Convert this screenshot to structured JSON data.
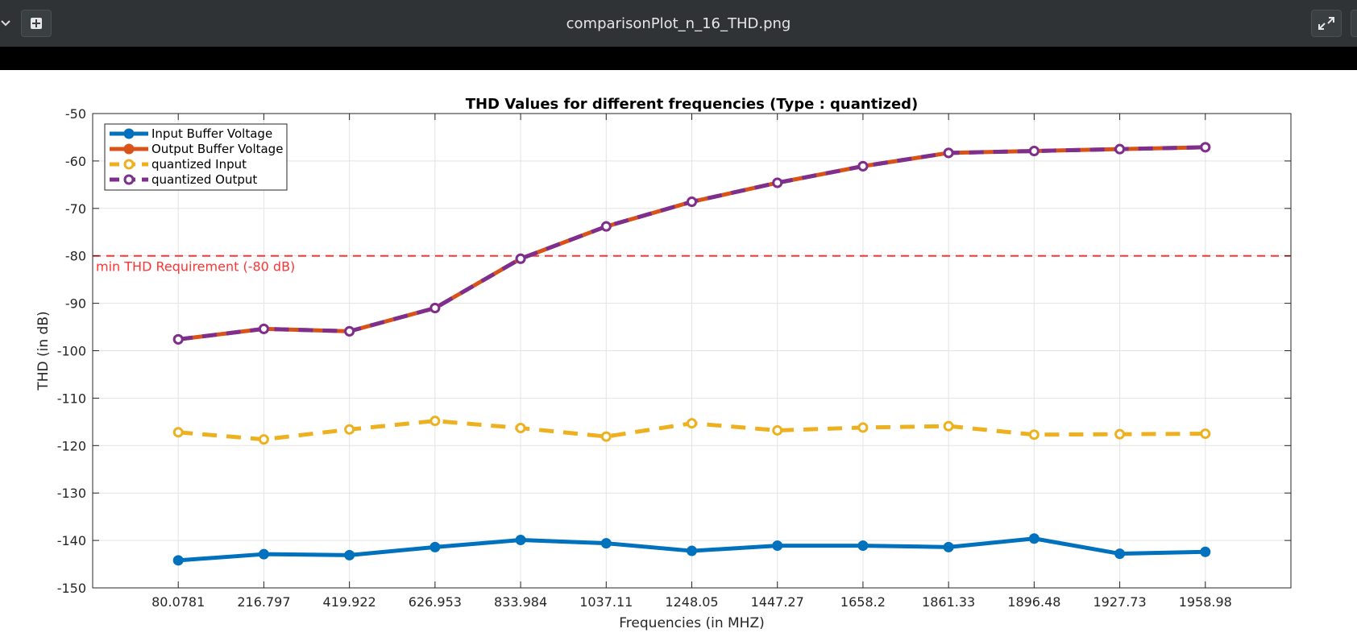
{
  "window": {
    "title": "comparisonPlot_n_16_THD.png"
  },
  "colors": {
    "titlebar": "#2f3335",
    "input_buffer": "#0072bd",
    "output_buffer": "#d95319",
    "quantized_input": "#edb120",
    "quantized_output": "#7e2f8e",
    "requirement": "#ff3333"
  },
  "icons": {
    "left": "chevron-down-icon",
    "add": "add-icon",
    "right": "fullscreen-icon"
  },
  "chart_data": {
    "type": "line",
    "title": "THD Values for different frequencies (Type : quantized)",
    "xlabel": "Frequencies (in MHZ)",
    "ylabel": "THD (in dB)",
    "categories": [
      "80.0781",
      "216.797",
      "419.922",
      "626.953",
      "833.984",
      "1037.11",
      "1248.05",
      "1447.27",
      "1658.2",
      "1861.33",
      "1896.48",
      "1927.73",
      "1958.98"
    ],
    "ylim": [
      -150,
      -50
    ],
    "yticks": [
      -50,
      -60,
      -70,
      -80,
      -90,
      -100,
      -110,
      -120,
      -130,
      -140,
      -150
    ],
    "grid": true,
    "legend_position": "top-left",
    "series": [
      {
        "name": "Input Buffer Voltage",
        "style": "solid",
        "values": [
          -144.2,
          -142.9,
          -143.1,
          -141.4,
          -139.9,
          -140.6,
          -142.2,
          -141.1,
          -141.1,
          -141.4,
          -139.6,
          -142.8,
          -142.4
        ]
      },
      {
        "name": "Output Buffer Voltage",
        "style": "solid",
        "values": [
          -97.6,
          -95.4,
          -95.9,
          -91.0,
          -80.6,
          -73.8,
          -68.6,
          -64.6,
          -61.1,
          -58.3,
          -57.9,
          -57.5,
          -57.1
        ]
      },
      {
        "name": "quantized Input",
        "style": "dashed",
        "values": [
          -117.2,
          -118.7,
          -116.6,
          -114.8,
          -116.3,
          -118.1,
          -115.3,
          -116.8,
          -116.2,
          -115.9,
          -117.7,
          -117.6,
          -117.5
        ]
      },
      {
        "name": "quantized Output",
        "style": "dashed",
        "values": [
          -97.6,
          -95.4,
          -95.9,
          -91.0,
          -80.6,
          -73.8,
          -68.6,
          -64.6,
          -61.1,
          -58.3,
          -57.9,
          -57.5,
          -57.1
        ]
      }
    ],
    "reference_line": {
      "value": -80,
      "label": "min THD Requirement (-80 dB)"
    }
  }
}
